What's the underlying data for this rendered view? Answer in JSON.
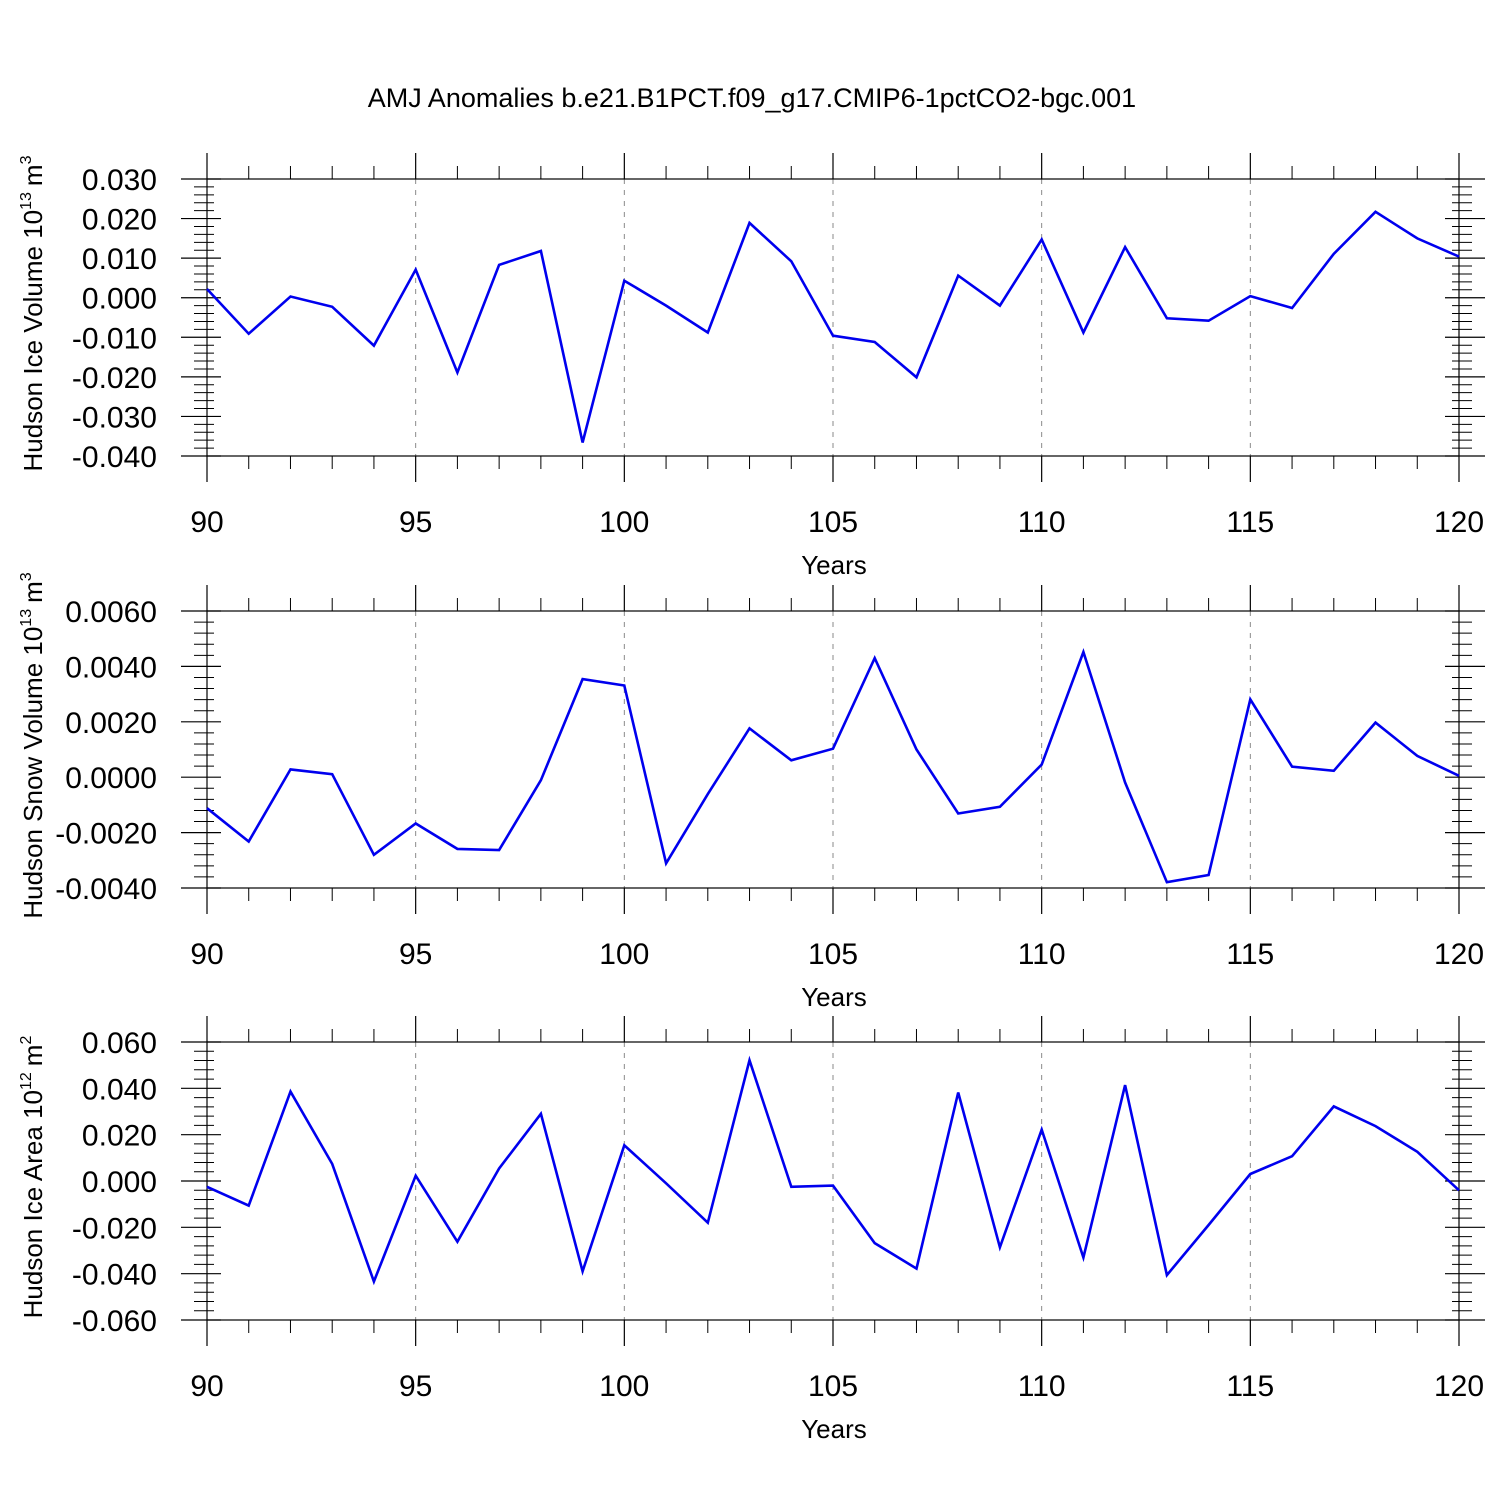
{
  "title": "AMJ Anomalies b.e21.B1PCT.f09_g17.CMIP6-1pctCO2-bgc.001",
  "chart_data": [
    {
      "type": "line",
      "ylabel": "Hudson Ice Volume 10",
      "ylabel_exp": "13",
      "ylabel_unit": "m",
      "ylabel_unit_exp": "3",
      "xlabel": "Years",
      "xlim": [
        90,
        120
      ],
      "ylim": [
        -0.04,
        0.03
      ],
      "yticks": [
        -0.04,
        -0.03,
        -0.02,
        -0.01,
        0.0,
        0.01,
        0.02,
        0.03
      ],
      "ytick_labels": [
        "-0.040",
        "-0.030",
        "-0.020",
        "-0.010",
        "0.000",
        "0.010",
        "0.020",
        "0.030"
      ],
      "xticks": [
        90,
        95,
        100,
        105,
        110,
        115,
        120
      ],
      "xtick_labels": [
        "90",
        "95",
        "100",
        "105",
        "110",
        "115",
        "120"
      ],
      "line_color": "#0000ee",
      "grid": "vertical dashed at major x ticks",
      "x": [
        90,
        91,
        92,
        93,
        94,
        95,
        96,
        97,
        98,
        99,
        100,
        101,
        102,
        103,
        104,
        105,
        106,
        107,
        108,
        109,
        110,
        111,
        112,
        113,
        114,
        115,
        116,
        117,
        118,
        119,
        120
      ],
      "values": [
        0.0022,
        -0.0091,
        0.0003,
        -0.0023,
        -0.0121,
        0.0071,
        -0.0189,
        0.0083,
        0.0118,
        -0.0366,
        0.0043,
        -0.002,
        -0.0088,
        0.0189,
        0.0092,
        -0.0096,
        -0.0112,
        -0.0201,
        0.0056,
        -0.002,
        0.0147,
        -0.0088,
        0.0128,
        -0.0052,
        -0.0058,
        0.0004,
        -0.0026,
        0.0111,
        0.0217,
        0.015,
        0.0104
      ]
    },
    {
      "type": "line",
      "ylabel": "Hudson Snow Volume 10",
      "ylabel_exp": "13",
      "ylabel_unit": "m",
      "ylabel_unit_exp": "3",
      "xlabel": "Years",
      "xlim": [
        90,
        120
      ],
      "ylim": [
        -0.004,
        0.006
      ],
      "yticks": [
        -0.004,
        -0.002,
        0.0,
        0.002,
        0.004,
        0.006
      ],
      "ytick_labels": [
        "-0.0040",
        "-0.0020",
        "0.0000",
        "0.0020",
        "0.0040",
        "0.0060"
      ],
      "xticks": [
        90,
        95,
        100,
        105,
        110,
        115,
        120
      ],
      "xtick_labels": [
        "90",
        "95",
        "100",
        "105",
        "110",
        "115",
        "120"
      ],
      "line_color": "#0000ee",
      "grid": "vertical dashed at major x ticks",
      "x": [
        90,
        91,
        92,
        93,
        94,
        95,
        96,
        97,
        98,
        99,
        100,
        101,
        102,
        103,
        104,
        105,
        106,
        107,
        108,
        109,
        110,
        111,
        112,
        113,
        114,
        115,
        116,
        117,
        118,
        119,
        120
      ],
      "values": [
        -0.00112,
        -0.00232,
        0.00028,
        0.00011,
        -0.0028,
        -0.00167,
        -0.00259,
        -0.00263,
        -0.00011,
        0.00354,
        0.00331,
        -0.00311,
        -0.00061,
        0.00176,
        0.00061,
        0.00103,
        0.0043,
        0.001,
        -0.00131,
        -0.00107,
        0.00046,
        0.00452,
        -0.00019,
        -0.00379,
        -0.00353,
        0.00281,
        0.00038,
        0.00023,
        0.00197,
        0.00077,
        5e-05
      ]
    },
    {
      "type": "line",
      "ylabel": "Hudson Ice Area 10",
      "ylabel_exp": "12",
      "ylabel_unit": "m",
      "ylabel_unit_exp": "2",
      "xlabel": "Years",
      "xlim": [
        90,
        120
      ],
      "ylim": [
        -0.06,
        0.06
      ],
      "yticks": [
        -0.06,
        -0.04,
        -0.02,
        0.0,
        0.02,
        0.04,
        0.06
      ],
      "ytick_labels": [
        "-0.060",
        "-0.040",
        "-0.020",
        "0.000",
        "0.020",
        "0.040",
        "0.060"
      ],
      "xticks": [
        90,
        95,
        100,
        105,
        110,
        115,
        120
      ],
      "xtick_labels": [
        "90",
        "95",
        "100",
        "105",
        "110",
        "115",
        "120"
      ],
      "line_color": "#0000ee",
      "grid": "vertical dashed at major x ticks",
      "x": [
        90,
        91,
        92,
        93,
        94,
        95,
        96,
        97,
        98,
        99,
        100,
        101,
        102,
        103,
        104,
        105,
        106,
        107,
        108,
        109,
        110,
        111,
        112,
        113,
        114,
        115,
        116,
        117,
        118,
        119,
        120
      ],
      "values": [
        -0.0025,
        -0.0106,
        0.0386,
        0.0074,
        -0.0434,
        0.0023,
        -0.0262,
        0.0054,
        0.029,
        -0.039,
        0.0154,
        -0.001,
        -0.018,
        0.0521,
        -0.0025,
        -0.002,
        -0.0268,
        -0.0378,
        0.0382,
        -0.0286,
        0.0222,
        -0.033,
        0.0414,
        -0.0406,
        -0.019,
        0.003,
        0.0107,
        0.0322,
        0.0237,
        0.0126,
        -0.004
      ]
    }
  ]
}
